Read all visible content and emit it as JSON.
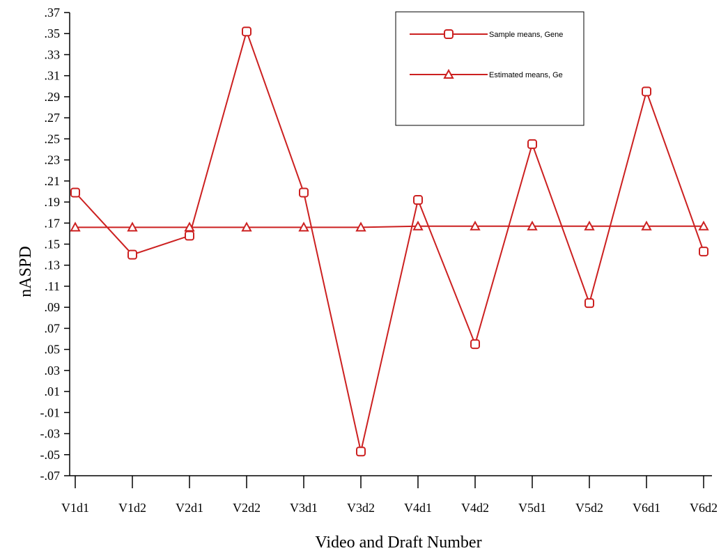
{
  "chart_data": {
    "type": "line",
    "xlabel": "Video and Draft Number",
    "ylabel": "nASPD",
    "categories": [
      "V1d1",
      "V1d2",
      "V2d1",
      "V2d2",
      "V3d1",
      "V3d2",
      "V4d1",
      "V4d2",
      "V5d1",
      "V5d2",
      "V6d1",
      "V6d2"
    ],
    "ylim": [
      -0.07,
      0.37
    ],
    "yticks": [
      -0.07,
      -0.05,
      -0.03,
      -0.01,
      0.01,
      0.03,
      0.05,
      0.07,
      0.09,
      0.11,
      0.13,
      0.15,
      0.17,
      0.19,
      0.21,
      0.23,
      0.25,
      0.27,
      0.29,
      0.31,
      0.33,
      0.35,
      0.37
    ],
    "ytick_labels": [
      "-.07",
      "-.05",
      "-.03",
      "-.01",
      ".01",
      ".03",
      ".05",
      ".07",
      ".09",
      ".11",
      ".13",
      ".15",
      ".17",
      ".19",
      ".21",
      ".23",
      ".25",
      ".27",
      ".29",
      ".31",
      ".33",
      ".35",
      ".37"
    ],
    "series": [
      {
        "name": "Sample means, Gene",
        "marker": "square",
        "color": "#cc2020",
        "values": [
          0.199,
          0.14,
          0.158,
          0.352,
          0.199,
          -0.047,
          0.192,
          0.055,
          0.245,
          0.094,
          0.295,
          0.143
        ]
      },
      {
        "name": "Estimated means, Ge",
        "marker": "triangle",
        "color": "#cc2020",
        "values": [
          0.166,
          0.166,
          0.166,
          0.166,
          0.166,
          0.166,
          0.167,
          0.167,
          0.167,
          0.167,
          0.167,
          0.167
        ]
      }
    ],
    "grid": false,
    "legend_position": "top-right"
  }
}
